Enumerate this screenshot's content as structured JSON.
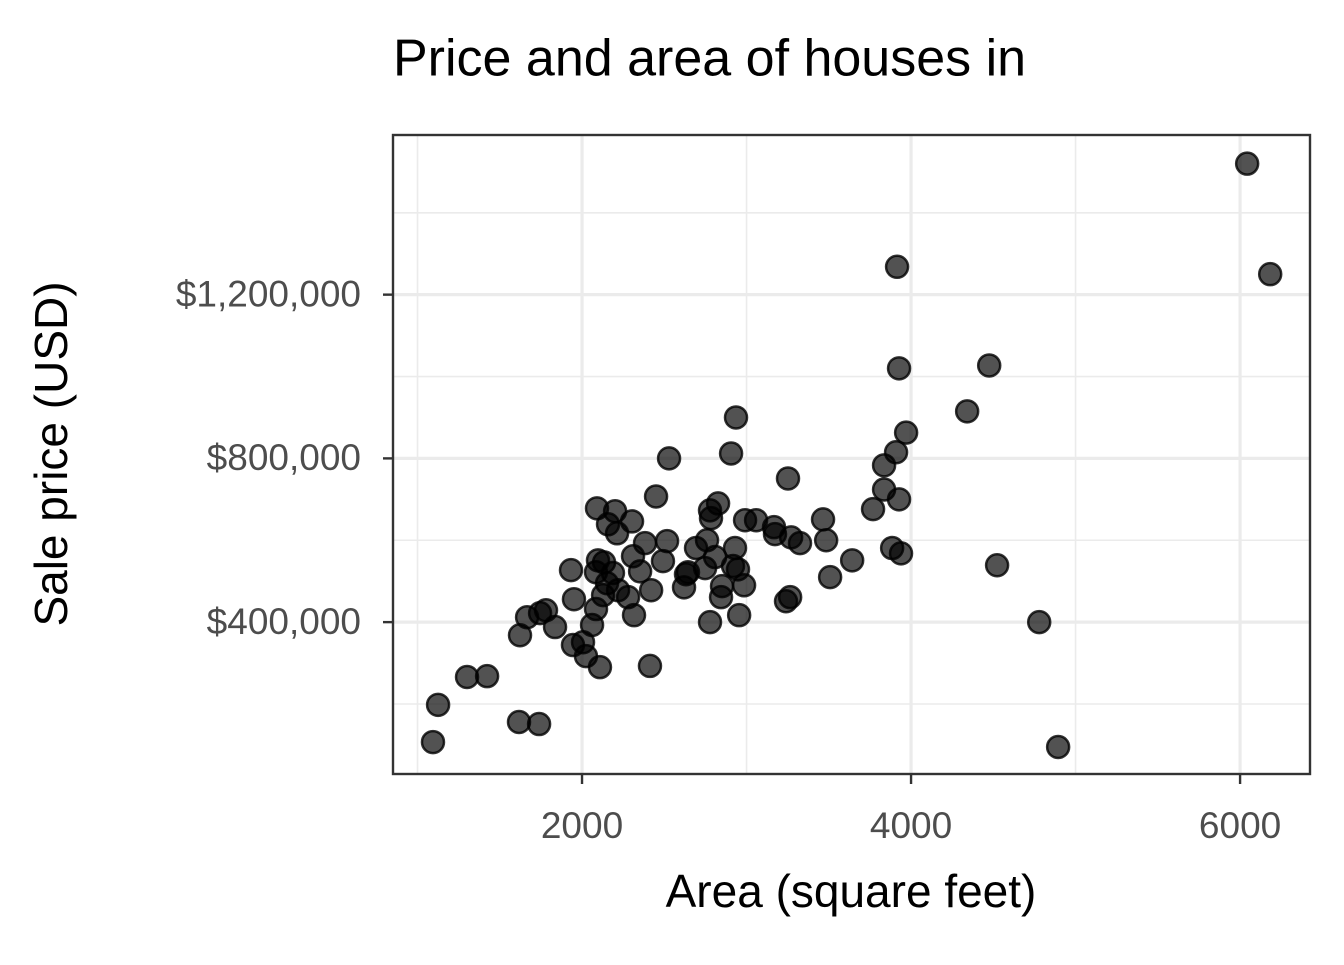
{
  "chart_data": {
    "type": "scatter",
    "title": "Price and area of houses in",
    "x_label": "Area (square feet)",
    "y_label": "Sale price (USD)",
    "color": "#000000",
    "xlim": [
      851,
      6425
    ],
    "ylim": [
      29000,
      1590000
    ],
    "xticks": [
      2000,
      4000,
      6000
    ],
    "x_minor_grid": [
      1000,
      3000,
      5000
    ],
    "yticks": [
      {
        "value": 400000,
        "label": "$400,000"
      },
      {
        "value": 800000,
        "label": "$800,000"
      },
      {
        "value": 1200000,
        "label": "$1,200,000"
      }
    ],
    "y_minor_grid": [
      200000,
      600000,
      1000000,
      1400000
    ],
    "grid": true,
    "x": [
      6043,
      6183,
      3915,
      3927,
      4475,
      4341,
      3970,
      2936,
      3909,
      3836,
      2906,
      2529,
      3836,
      3927,
      3769,
      3252,
      2450,
      2827,
      2784,
      2991,
      3058,
      3167,
      3173,
      3271,
      3325,
      3465,
      3484,
      3642,
      3508,
      3885,
      3939,
      4523,
      4779,
      4894,
      2091,
      2201,
      2304,
      2158,
      2213,
      2383,
      2517,
      1933,
      2097,
      2134,
      2188,
      2310,
      2353,
      2492,
      2085,
      2152,
      2219,
      2128,
      2280,
      2420,
      1951,
      2085,
      2316,
      1781,
      1745,
      1666,
      1836,
      2061,
      1623,
      1945,
      2006,
      2024,
      2109,
      2413,
      1301,
      1423,
      1125,
      1094,
      1617,
      1739,
      2693,
      2760,
      2809,
      2930,
      2918,
      2948,
      2748,
      2644,
      2620,
      2985,
      2851,
      2845,
      2778,
      2955,
      3240,
      3265,
      2632,
      2778
    ],
    "values": [
      1520000,
      1250000,
      1268000,
      1020000,
      1027000,
      915000,
      863000,
      900000,
      815000,
      783000,
      812000,
      800000,
      724000,
      700000,
      676000,
      751000,
      707000,
      690000,
      654000,
      649000,
      649000,
      632000,
      615000,
      607000,
      593000,
      651000,
      600000,
      551000,
      510000,
      581000,
      568000,
      539000,
      400000,
      95000,
      678000,
      671000,
      646000,
      639000,
      617000,
      593000,
      598000,
      527000,
      551000,
      546000,
      520000,
      561000,
      524000,
      549000,
      522000,
      495000,
      478000,
      466000,
      461000,
      478000,
      456000,
      432000,
      417000,
      429000,
      422000,
      412000,
      388000,
      393000,
      368000,
      344000,
      351000,
      317000,
      290000,
      293000,
      266000,
      268000,
      198000,
      107000,
      156000,
      151000,
      581000,
      600000,
      559000,
      581000,
      537000,
      529000,
      532000,
      522000,
      485000,
      490000,
      488000,
      461000,
      400000,
      417000,
      451000,
      461000,
      517000,
      673000
    ]
  }
}
